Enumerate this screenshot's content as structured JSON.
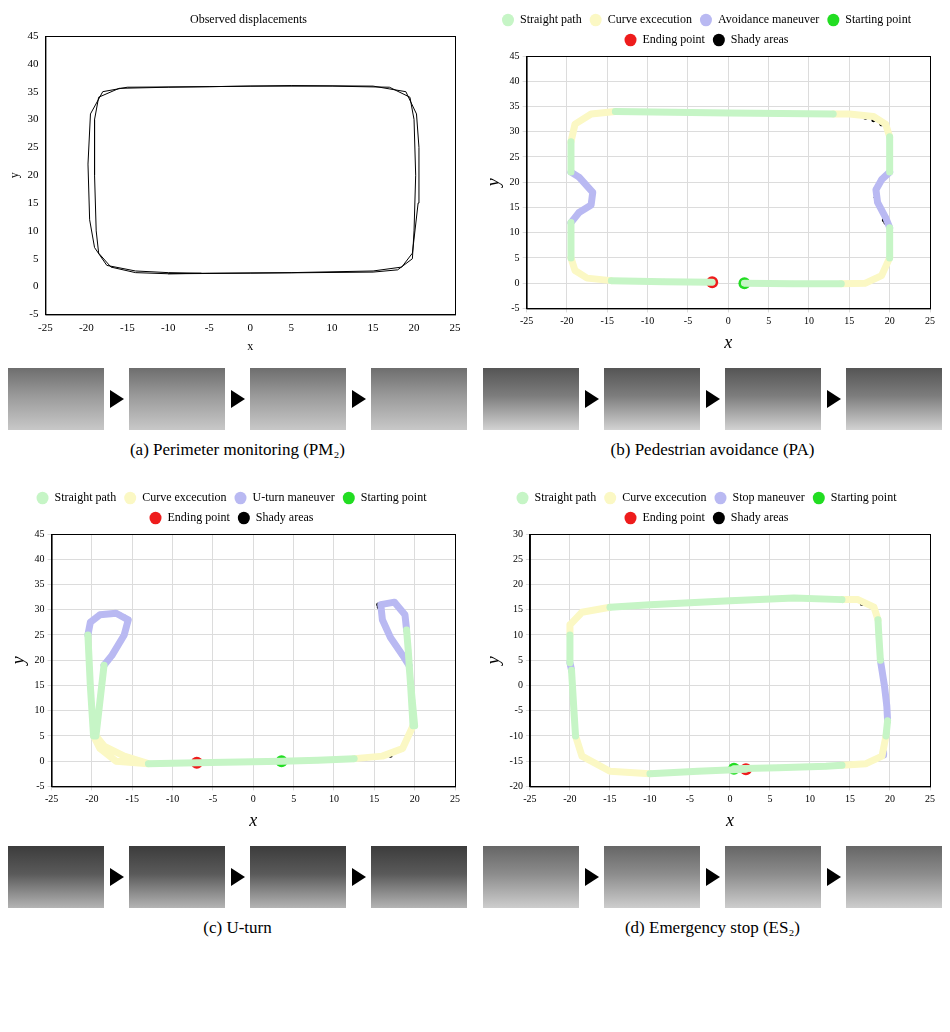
{
  "chart_data": [
    {
      "type": "line",
      "caption": "(a) Perimeter monitoring (PM₂)",
      "x_label": "x",
      "y_label": "y",
      "xlim": [
        -25,
        25
      ],
      "xticks": [
        -25,
        -20,
        -15,
        -10,
        -5,
        0,
        5,
        10,
        15,
        20,
        25
      ],
      "ylim": [
        -5,
        45
      ],
      "yticks": [
        -5,
        0,
        5,
        10,
        15,
        20,
        25,
        30,
        35,
        40,
        45
      ],
      "grid": false,
      "legend": "top",
      "series": [
        {
          "name": "Observed displacements",
          "color": "#000000",
          "line_style": "solid",
          "x": [
            -10,
            0,
            15,
            18,
            19.8,
            20,
            20.2,
            20,
            19.5,
            17,
            10,
            0,
            -10,
            -16,
            -18.5,
            -19,
            -19,
            -18.8,
            -18.5,
            -17,
            -14,
            -10,
            -5,
            5,
            15,
            18.5,
            19.8,
            20.5,
            20.6,
            20.3,
            19,
            15,
            5,
            -5,
            -15,
            -18,
            -19.5,
            -19.8,
            -19.6,
            -19,
            -17.5,
            -14,
            -10,
            -6
          ],
          "y": [
            2.3,
            2.4,
            2.6,
            3,
            5,
            10,
            20,
            30,
            34,
            35.8,
            36,
            36,
            35.8,
            35.6,
            34,
            30,
            20,
            10,
            6,
            3.5,
            2.5,
            2.3,
            2.4,
            2.5,
            2.8,
            3.5,
            6,
            15,
            25,
            31,
            35,
            36,
            36.1,
            35.9,
            35.8,
            35,
            31,
            22,
            12,
            7,
            3.8,
            2.8,
            2.5,
            2.4
          ]
        }
      ]
    },
    {
      "type": "line",
      "caption": "(b) Pedestrian avoidance (PA)",
      "x_label": "x",
      "y_label": "y",
      "xlim": [
        -25,
        25
      ],
      "xticks": [
        -25,
        -20,
        -15,
        -10,
        -5,
        0,
        5,
        10,
        15,
        20,
        25
      ],
      "ylim": [
        -5,
        45
      ],
      "yticks": [
        -5,
        0,
        5,
        10,
        15,
        20,
        25,
        30,
        35,
        40,
        45
      ],
      "grid": true,
      "legend": "top",
      "series": [
        {
          "name": "Straight path",
          "color": "#c6f5c6",
          "line_style": "solid",
          "marker": "circle",
          "x": [
            2,
            8,
            14,
            null,
            20,
            20,
            null,
            20,
            20,
            null,
            13,
            0,
            -14,
            null,
            -19.5,
            -19.5,
            null,
            -19.5,
            -19.5,
            null,
            -14.5,
            -8,
            -2
          ],
          "y": [
            0,
            -0.1,
            -0.1,
            null,
            5,
            11,
            null,
            22,
            29,
            null,
            33.5,
            33.7,
            34,
            null,
            28,
            22,
            null,
            12,
            5,
            null,
            0.5,
            0.3,
            0.2
          ]
        },
        {
          "name": "Curve excecution",
          "color": "#fbf8c4",
          "line_style": "solid",
          "marker": "circle",
          "x": [
            14,
            17,
            19,
            20,
            null,
            20,
            19.5,
            18,
            15,
            13,
            null,
            -14,
            -17,
            -19,
            -19.5,
            null,
            -19.5,
            -19,
            -17.5,
            -14.5
          ],
          "y": [
            -0.1,
            0,
            1.5,
            5,
            null,
            29,
            31.5,
            33,
            33.5,
            33.5,
            null,
            34,
            33.5,
            31.5,
            28,
            null,
            5,
            2.5,
            1,
            0.5
          ]
        },
        {
          "name": "Avoidance maneuver",
          "color": "#b9b9f2",
          "line_style": "solid",
          "marker": "circle",
          "x": [
            20,
            19.5,
            18.5,
            18.3,
            19,
            20,
            null,
            -19.5,
            -18.5,
            -16.8,
            -17,
            -18.5,
            -19.5
          ],
          "y": [
            11,
            13,
            16,
            18.5,
            20.5,
            22,
            null,
            22,
            21,
            18,
            15.5,
            14,
            12
          ]
        },
        {
          "name": "Starting point",
          "color": "#22dd22",
          "marker": "circle",
          "x": [
            2
          ],
          "y": [
            0
          ]
        },
        {
          "name": "Ending point",
          "color": "#ee1c1c",
          "marker": "circle",
          "x": [
            -2
          ],
          "y": [
            0.2
          ]
        },
        {
          "name": "Shady areas",
          "color": "#000000",
          "marker": "dot",
          "x": [
            9,
            10,
            11,
            12,
            13,
            14,
            17,
            18,
            19,
            18.4,
            18.3,
            18.3,
            19.3,
            19.5
          ],
          "y": [
            -0.1,
            -0.1,
            -0.1,
            -0.1,
            -0.1,
            -0.1,
            32.8,
            32.3,
            31.5,
            19,
            18,
            17,
            12.5,
            12
          ]
        }
      ]
    },
    {
      "type": "line",
      "caption": "(c) U-turn",
      "x_label": "x",
      "y_label": "y",
      "xlim": [
        -25,
        25
      ],
      "xticks": [
        -25,
        -20,
        -15,
        -10,
        -5,
        0,
        5,
        10,
        15,
        20,
        25
      ],
      "ylim": [
        -5,
        45
      ],
      "yticks": [
        -5,
        0,
        5,
        10,
        15,
        20,
        25,
        30,
        35,
        40,
        45
      ],
      "grid": true,
      "legend": "top",
      "series": [
        {
          "name": "Straight path",
          "color": "#c6f5c6",
          "line_style": "solid",
          "marker": "circle",
          "x": [
            -13,
            -7,
            0,
            3.5,
            8,
            12.5,
            null,
            19.8,
            19.5,
            19.2,
            19,
            null,
            19.3,
            19.7,
            20,
            null,
            -19.8,
            -20.2,
            -20.5,
            null,
            -18.5,
            -19,
            -19.5
          ],
          "y": [
            -0.5,
            -0.3,
            -0.1,
            0,
            0.2,
            0.5,
            null,
            7,
            15,
            22,
            26,
            null,
            19,
            12,
            7,
            null,
            5,
            15,
            25,
            null,
            19,
            12,
            5
          ]
        },
        {
          "name": "Curve excecution",
          "color": "#fbf8c4",
          "line_style": "solid",
          "marker": "circle",
          "x": [
            12.5,
            16,
            18.5,
            19.8,
            null,
            -13,
            -17,
            -19,
            -19.8,
            null,
            -19.5,
            -18.5,
            -16,
            -13
          ],
          "y": [
            0.5,
            1,
            2.5,
            7,
            null,
            -0.5,
            0,
            2.5,
            5,
            null,
            5,
            3,
            1,
            -0.5
          ]
        },
        {
          "name": "U-turn maneuver",
          "color": "#b9b9f2",
          "line_style": "solid",
          "marker": "circle",
          "x": [
            19,
            18.8,
            17.5,
            15.8,
            16,
            17,
            18.5,
            19.3,
            null,
            -20.5,
            -20.2,
            -19,
            -17,
            -15.5,
            -16,
            -17.5,
            -18.5
          ],
          "y": [
            26,
            29,
            31.5,
            31,
            28,
            24.5,
            21,
            19,
            null,
            25,
            27.5,
            29,
            29.3,
            28,
            25,
            21,
            19
          ]
        },
        {
          "name": "Starting point",
          "color": "#22dd22",
          "marker": "circle",
          "x": [
            3.5
          ],
          "y": [
            0
          ]
        },
        {
          "name": "Ending point",
          "color": "#ee1c1c",
          "marker": "circle",
          "x": [
            -7
          ],
          "y": [
            -0.3
          ]
        },
        {
          "name": "Shady areas",
          "color": "#000000",
          "marker": "dot",
          "x": [
            13,
            14,
            15,
            16,
            17,
            15.5,
            15.6,
            17,
            17.3,
            -17,
            -16.5,
            -16,
            -15.5
          ],
          "y": [
            0.5,
            0.6,
            0.7,
            0.9,
            1.1,
            31,
            30.5,
            24.5,
            23.8,
            29.3,
            29,
            28.6,
            28
          ]
        }
      ]
    },
    {
      "type": "line",
      "caption": "(d) Emergency stop (ES₂)",
      "x_label": "x",
      "y_label": "y",
      "xlim": [
        -25,
        25
      ],
      "xticks": [
        -25,
        -20,
        -15,
        -10,
        -5,
        0,
        5,
        10,
        15,
        20,
        25
      ],
      "ylim": [
        -20,
        30
      ],
      "yticks": [
        -20,
        -15,
        -10,
        -5,
        0,
        5,
        10,
        15,
        20,
        25,
        30
      ],
      "grid": true,
      "legend": "top",
      "series": [
        {
          "name": "Straight path",
          "color": "#c6f5c6",
          "line_style": "solid",
          "marker": "circle",
          "x": [
            0.5,
            6,
            12,
            14,
            null,
            19.5,
            19.7,
            null,
            18.8,
            18.6,
            18.5,
            null,
            14,
            8,
            0,
            -10,
            -15,
            null,
            -20,
            -20,
            null,
            -19.8,
            -19.5,
            -19.3,
            null,
            -10,
            -4,
            2
          ],
          "y": [
            -16.5,
            -16.3,
            -16,
            -15.8,
            null,
            -10,
            -7,
            null,
            5,
            10,
            13,
            null,
            17,
            17.3,
            16.8,
            16,
            15.5,
            null,
            10,
            4.5,
            null,
            3,
            -5,
            -10,
            null,
            -17.5,
            -17,
            -16.6
          ]
        },
        {
          "name": "Curve excecution",
          "color": "#fbf8c4",
          "line_style": "solid",
          "marker": "circle",
          "x": [
            14,
            17,
            19,
            19.5,
            null,
            18.5,
            18,
            16,
            14,
            null,
            -15,
            -18.5,
            -20,
            -20,
            null,
            -19.3,
            -18.5,
            -15,
            -10
          ],
          "y": [
            -15.8,
            -15.5,
            -14,
            -10,
            null,
            13,
            15.5,
            17,
            17,
            null,
            15.5,
            14.5,
            12,
            10,
            null,
            -10,
            -14,
            -17,
            -17.5
          ]
        },
        {
          "name": "Stop maneuver",
          "color": "#b9b9f2",
          "line_style": "solid",
          "marker": "circle",
          "x": [
            19.7,
            19.6,
            19.3,
            19,
            18.8,
            null,
            -20,
            -19.9,
            -19.8,
            null,
            19.2,
            19.2
          ],
          "y": [
            -7,
            -4,
            0,
            3,
            5,
            null,
            4.5,
            3.8,
            3,
            null,
            -13.3,
            -13.8
          ]
        },
        {
          "name": "Starting point",
          "color": "#22dd22",
          "marker": "circle",
          "x": [
            0.5
          ],
          "y": [
            -16.5
          ]
        },
        {
          "name": "Ending point",
          "color": "#ee1c1c",
          "marker": "circle",
          "x": [
            2
          ],
          "y": [
            -16.6
          ]
        },
        {
          "name": "Shady areas",
          "color": "#000000",
          "marker": "dot",
          "x": [
            11.5,
            12.5,
            13.5,
            14.5,
            14.5,
            15.5,
            16.5
          ],
          "y": [
            -16,
            -15.9,
            -15.8,
            -15.6,
            17.2,
            16.8,
            16.2
          ]
        }
      ]
    }
  ]
}
